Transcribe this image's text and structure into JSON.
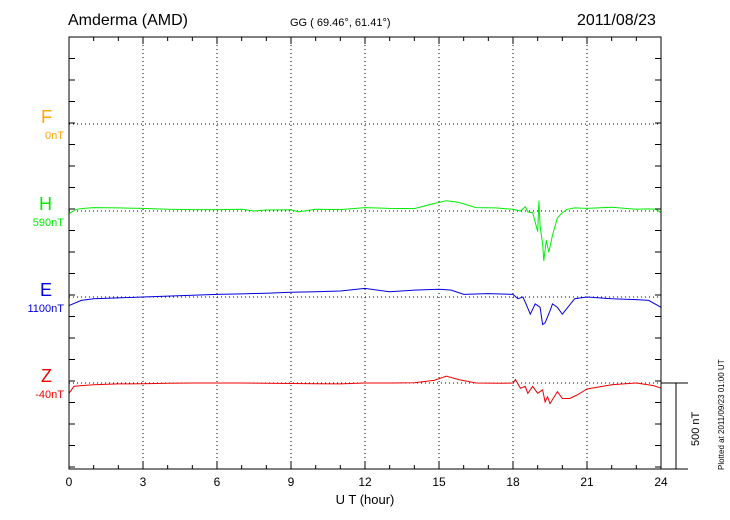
{
  "header": {
    "station": "Amderma (AMD)",
    "coords": "GG ( 69.46°,  61.41°)",
    "date": "2011/08/23"
  },
  "plotted_note": "Plotted at 2011/09/23 01:00 UT",
  "scale_label": "500 nT",
  "chart_data": {
    "type": "line",
    "xlabel": "U T (hour)",
    "xlim": [
      0,
      24
    ],
    "xticks": [
      "0",
      "3",
      "6",
      "9",
      "12",
      "15",
      "18",
      "21",
      "24"
    ],
    "ylabel": "",
    "scale_bar_nT": 500,
    "grid": true,
    "series": [
      {
        "name": "F",
        "baseline_label": "0nT",
        "color": "#ffa500",
        "baseline_nT": 0,
        "x": [],
        "values": []
      },
      {
        "name": "H",
        "baseline_label": "590nT",
        "color": "#00ee00",
        "baseline_nT": 590,
        "x": [
          0,
          0.3,
          0.6,
          1,
          2,
          3,
          4,
          5,
          6,
          7,
          7.5,
          8,
          9,
          9.3,
          10,
          11,
          12,
          13,
          14,
          14.7,
          15.3,
          15.8,
          16.5,
          17.3,
          18,
          18.3,
          18.5,
          18.6,
          18.8,
          19.0,
          19.05,
          19.1,
          19.2,
          19.25,
          19.35,
          19.45,
          19.6,
          19.8,
          20.0,
          20.2,
          20.5,
          21,
          22,
          23,
          23.5,
          23.8,
          24
        ],
        "values": [
          575,
          600,
          605,
          610,
          608,
          605,
          600,
          598,
          598,
          600,
          590,
          596,
          597,
          585,
          600,
          598,
          610,
          605,
          604,
          630,
          650,
          640,
          610,
          608,
          600,
          590,
          615,
          585,
          580,
          470,
          650,
          500,
          400,
          300,
          420,
          350,
          450,
          550,
          580,
          600,
          608,
          605,
          612,
          600,
          602,
          600,
          580
        ]
      },
      {
        "name": "E",
        "baseline_label": "1100nT",
        "color": "#0000dd",
        "baseline_nT": 1100,
        "x": [
          0,
          0.5,
          1,
          2,
          3,
          4,
          5,
          6,
          7,
          8,
          9,
          10,
          11,
          12,
          13,
          14,
          15,
          15.5,
          16,
          17,
          18,
          18.2,
          18.4,
          18.5,
          18.7,
          18.9,
          19.1,
          19.2,
          19.3,
          19.5,
          19.6,
          19.8,
          20,
          20.5,
          21,
          22,
          23,
          23.5,
          24
        ],
        "values": [
          1050,
          1080,
          1090,
          1095,
          1100,
          1105,
          1110,
          1115,
          1118,
          1122,
          1128,
          1130,
          1135,
          1150,
          1130,
          1140,
          1145,
          1140,
          1115,
          1120,
          1115,
          1090,
          1100,
          1070,
          1000,
          1060,
          1040,
          940,
          950,
          1020,
          1060,
          1040,
          1000,
          1090,
          1100,
          1090,
          1085,
          1080,
          1040
        ]
      },
      {
        "name": "Z",
        "baseline_label": "-40nT",
        "color": "#ee0000",
        "baseline_nT": -40,
        "x": [
          0,
          0.2,
          0.5,
          1,
          2,
          3,
          4,
          5,
          6,
          7,
          8,
          9,
          10,
          11,
          12,
          13,
          14,
          14.8,
          15.3,
          15.8,
          16.5,
          17.5,
          18,
          18.1,
          18.3,
          18.5,
          18.6,
          18.8,
          19.0,
          19.2,
          19.3,
          19.4,
          19.5,
          19.8,
          20,
          20.3,
          20.6,
          21,
          22,
          23,
          23.7,
          24
        ],
        "values": [
          -100,
          -60,
          -55,
          -50,
          -45,
          -44,
          -42,
          -40,
          -40,
          -40,
          -42,
          -43,
          -44,
          -45,
          -40,
          -40,
          -38,
          -25,
          0,
          -20,
          -40,
          -42,
          -40,
          -20,
          -70,
          -60,
          -100,
          -60,
          -100,
          -80,
          -150,
          -120,
          -160,
          -90,
          -130,
          -130,
          -110,
          -75,
          -50,
          -40,
          -55,
          -70
        ]
      }
    ]
  }
}
